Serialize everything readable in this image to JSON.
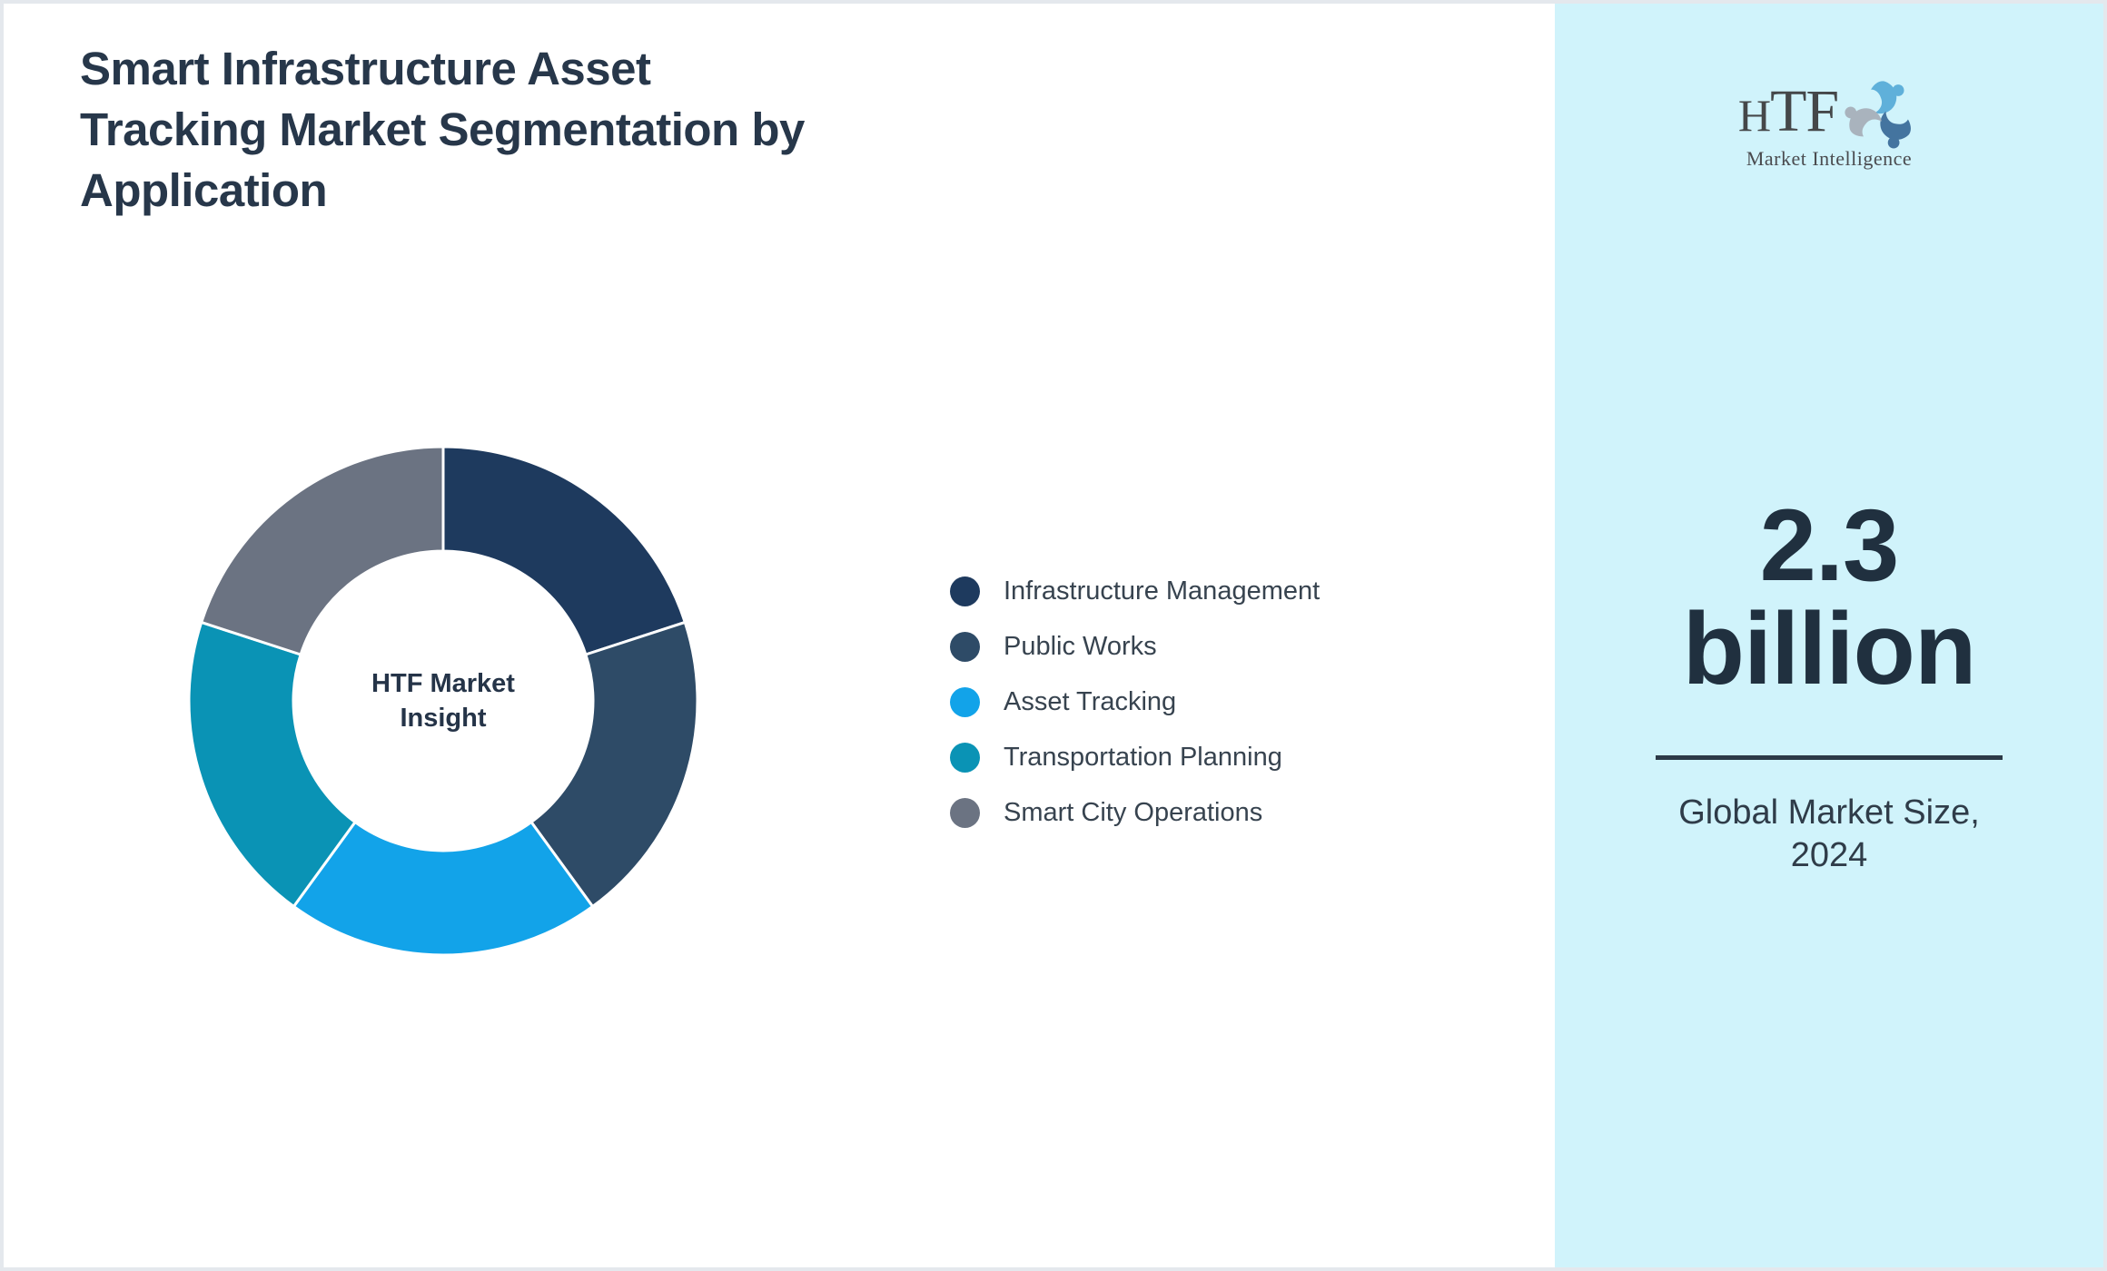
{
  "page": {
    "background": "#ffffff",
    "border_color": "#e4e8ed"
  },
  "title": {
    "lines": [
      "Smart Infrastructure Asset",
      "Tracking Market Segmentation by",
      "Application"
    ],
    "color": "#27374a"
  },
  "chart_data": {
    "type": "pie",
    "subtype": "donut",
    "title": "Smart Infrastructure Asset Tracking Market Segmentation by Application",
    "center_label_lines": [
      "HTF Market",
      "Insight"
    ],
    "legend_position": "right-of-chart",
    "start_angle_deg_from_top": 0,
    "direction": "clockwise",
    "segments": [
      {
        "label": "Infrastructure Management",
        "value_percent": 20,
        "color": "#1e3a5e"
      },
      {
        "label": "Public Works",
        "value_percent": 20,
        "color": "#2e4b67"
      },
      {
        "label": "Asset Tracking",
        "value_percent": 20,
        "color": "#12a3e9"
      },
      {
        "label": "Transportation Planning",
        "value_percent": 20,
        "color": "#0a93b5"
      },
      {
        "label": "Smart City Operations",
        "value_percent": 20,
        "color": "#6b7382"
      }
    ]
  },
  "sidebar": {
    "background": "#d0f3fb",
    "logo": {
      "text": "HTF",
      "subtext": "Market Intelligence",
      "icon": "three-figure-swirl"
    },
    "market_size": {
      "value": "2.3",
      "unit": "billion"
    },
    "caption_lines": [
      "Global Market Size,",
      "2024"
    ]
  }
}
